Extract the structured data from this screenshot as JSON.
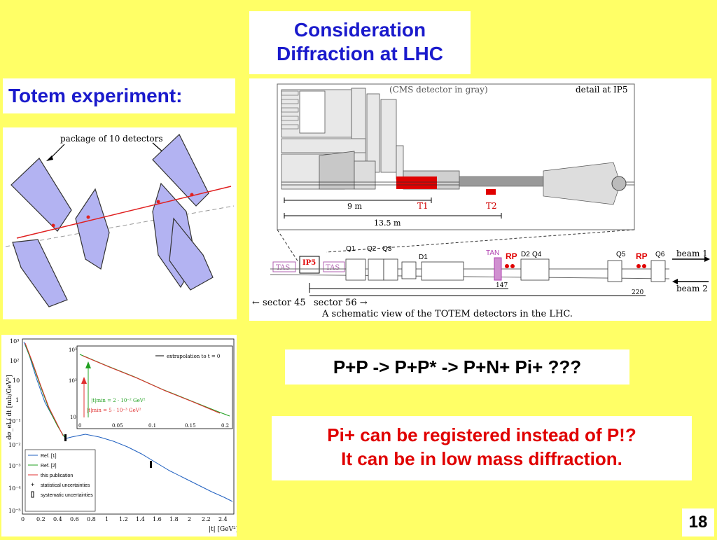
{
  "title": {
    "line1": "Consideration",
    "line2": "Diffraction at LHC"
  },
  "totem_heading": "Totem experiment:",
  "detector_figure": {
    "label": "package of 10 detectors"
  },
  "layout_figure": {
    "cms_note": "(CMS detector in gray)",
    "detail": "detail at IP5",
    "dist1": "9 m",
    "dist2": "13.5 m",
    "t1": "T1",
    "t2": "T2",
    "components": [
      "TAS",
      "IP5",
      "TAS",
      "Q1",
      "Q2",
      "Q3",
      "D1",
      "TAN",
      "RP",
      "D2",
      "Q4",
      "Q5",
      "RP",
      "Q6"
    ],
    "dist147": "147",
    "dist220": "220",
    "beam1": "beam 1",
    "beam2": "beam 2",
    "sector45": "← sector 45",
    "sector56": "sector 56 →",
    "caption": "A schematic view of the TOTEM detectors in the LHC."
  },
  "plot_figure": {
    "ylabel": "dσ_el / dt  [mb/GeV²]",
    "xlabel": "|t|  [GeV²]",
    "x_ticks": [
      "0",
      "0.2",
      "0.4",
      "0.6",
      "0.8",
      "1",
      "1.2",
      "1.4",
      "1.6",
      "1.8",
      "2",
      "2.2",
      "2.4"
    ],
    "y_ticks": [
      "10³",
      "10²",
      "10",
      "1",
      "10⁻¹",
      "10⁻²",
      "10⁻³",
      "10⁻⁴",
      "10⁻⁵"
    ],
    "legend": [
      "Ref. [1]",
      "Ref. [2]",
      "this publication",
      "statistical uncertainties",
      "systematic uncertainties"
    ],
    "inset_legend": "extrapolation to  t = 0",
    "inset_x_ticks": [
      "0",
      "0.05",
      "0.1",
      "0.15",
      "0.2"
    ],
    "inset_y_ticks": [
      "10³",
      "10²",
      "10"
    ],
    "inset_note1": "|t|min = 2 · 10⁻² GeV²",
    "inset_note2": "|t|min = 5 · 10⁻³ GeV²",
    "colors": {
      "ref1": "#2060c0",
      "ref2": "#20a020",
      "this": "#e03030"
    }
  },
  "reaction": "P+P -> P+P* -> P+N+ Pi+ ???",
  "note": {
    "line1": "Pi+ can be registered instead of P!?",
    "line2": "It can be in low mass diffraction."
  },
  "page_number": "18"
}
